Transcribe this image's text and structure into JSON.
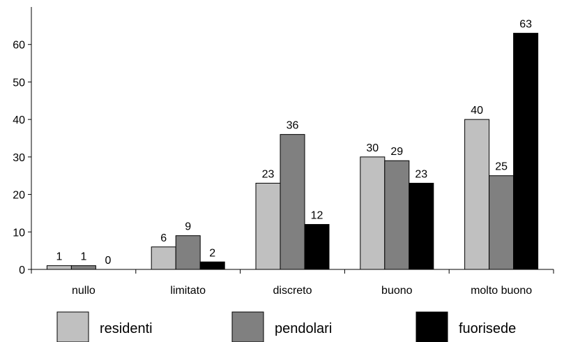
{
  "chart_data": {
    "type": "bar",
    "categories": [
      "nullo",
      "limitato",
      "discreto",
      "buono",
      "molto buono"
    ],
    "series": [
      {
        "name": "residenti",
        "values": [
          1,
          6,
          23,
          30,
          40
        ],
        "color": "#c0c0c0"
      },
      {
        "name": "pendolari",
        "values": [
          1,
          9,
          36,
          29,
          25
        ],
        "color": "#808080"
      },
      {
        "name": "fuorisede",
        "values": [
          0,
          2,
          12,
          23,
          63
        ],
        "color": "#000000"
      }
    ],
    "ylim": [
      0,
      70
    ],
    "yticks": [
      0,
      10,
      20,
      30,
      40,
      50,
      60
    ],
    "grid": false,
    "legend_position": "bottom",
    "data_labels": true
  }
}
